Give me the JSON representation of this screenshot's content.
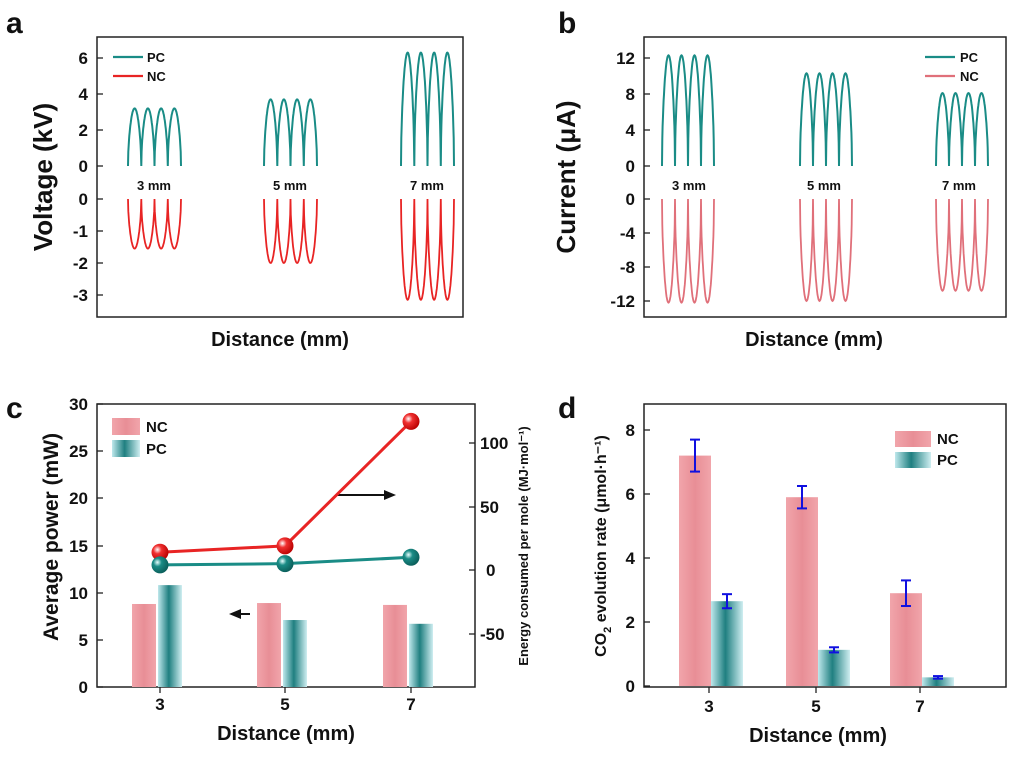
{
  "colors": {
    "pc": "#1a8c86",
    "nc": "#e82424",
    "nc_light": "#e0707a",
    "pc_light": "#9fd8de",
    "nc_bar": "#e88e96",
    "err": "#1010e0"
  },
  "chart_data": [
    {
      "panel": "a",
      "type": "line",
      "ylabel": "Voltage (kV)",
      "xlabel": "Distance (mm)",
      "yticks": [
        "6",
        "4",
        "2",
        "0",
        "0",
        "-1",
        "-2",
        "-3"
      ],
      "legend": [
        "PC",
        "NC"
      ],
      "groups": [
        {
          "label": "3 mm",
          "pc_peak": 3.2,
          "nc_peak": -1.55
        },
        {
          "label": "5 mm",
          "pc_peak": 3.7,
          "nc_peak": -2.0
        },
        {
          "label": "7 mm",
          "pc_peak": 6.3,
          "nc_peak": -3.15
        }
      ]
    },
    {
      "panel": "b",
      "type": "line",
      "ylabel": "Current (μA)",
      "xlabel": "Distance (mm)",
      "yticks": [
        "12",
        "8",
        "4",
        "0",
        "0",
        "-4",
        "-8",
        "-12"
      ],
      "legend": [
        "PC",
        "NC"
      ],
      "groups": [
        {
          "label": "3 mm",
          "pc_peak": 12.3,
          "nc_peak": -12.2
        },
        {
          "label": "5 mm",
          "pc_peak": 10.3,
          "nc_peak": -12.0
        },
        {
          "label": "7 mm",
          "pc_peak": 8.1,
          "nc_peak": -10.8
        }
      ]
    },
    {
      "panel": "c",
      "type": "bar",
      "categories": [
        "3",
        "5",
        "7"
      ],
      "xlabel": "Distance (mm)",
      "ylabel": "Average power (mW)",
      "y2label": "Energy consumed per mole (MJ·mol⁻¹)",
      "ylim": [
        0,
        30
      ],
      "y2lim": [
        -90,
        125
      ],
      "yticks": [
        "0",
        "5",
        "10",
        "15",
        "20",
        "25",
        "30"
      ],
      "y2ticks": [
        "-50",
        "0",
        "50",
        "100"
      ],
      "legend": [
        "NC",
        "PC"
      ],
      "series": [
        {
          "name": "NC",
          "type": "bar",
          "values": [
            8.8,
            8.9,
            8.7
          ]
        },
        {
          "name": "PC",
          "type": "bar",
          "values": [
            10.8,
            7.1,
            6.7
          ]
        },
        {
          "name": "NC",
          "type": "line",
          "axis": "y2",
          "values": [
            14,
            19,
            117
          ]
        },
        {
          "name": "PC",
          "type": "line",
          "axis": "y2",
          "values": [
            4,
            5,
            10
          ]
        }
      ]
    },
    {
      "panel": "d",
      "type": "bar",
      "categories": [
        "3",
        "5",
        "7"
      ],
      "xlabel": "Distance (mm)",
      "ylabel_main": "CO",
      "ylabel_sub": "2",
      "ylabel_rest": " evolution rate (μmol·h⁻¹)",
      "ylim": [
        0,
        8.5
      ],
      "yticks": [
        "0",
        "2",
        "4",
        "6",
        "8"
      ],
      "legend": [
        "NC",
        "PC"
      ],
      "series": [
        {
          "name": "NC",
          "values": [
            7.2,
            5.9,
            2.9
          ],
          "errors": [
            0.5,
            0.35,
            0.4
          ]
        },
        {
          "name": "PC",
          "values": [
            2.65,
            1.13,
            0.27
          ],
          "errors": [
            0.22,
            0.08,
            0.04
          ]
        }
      ]
    }
  ]
}
